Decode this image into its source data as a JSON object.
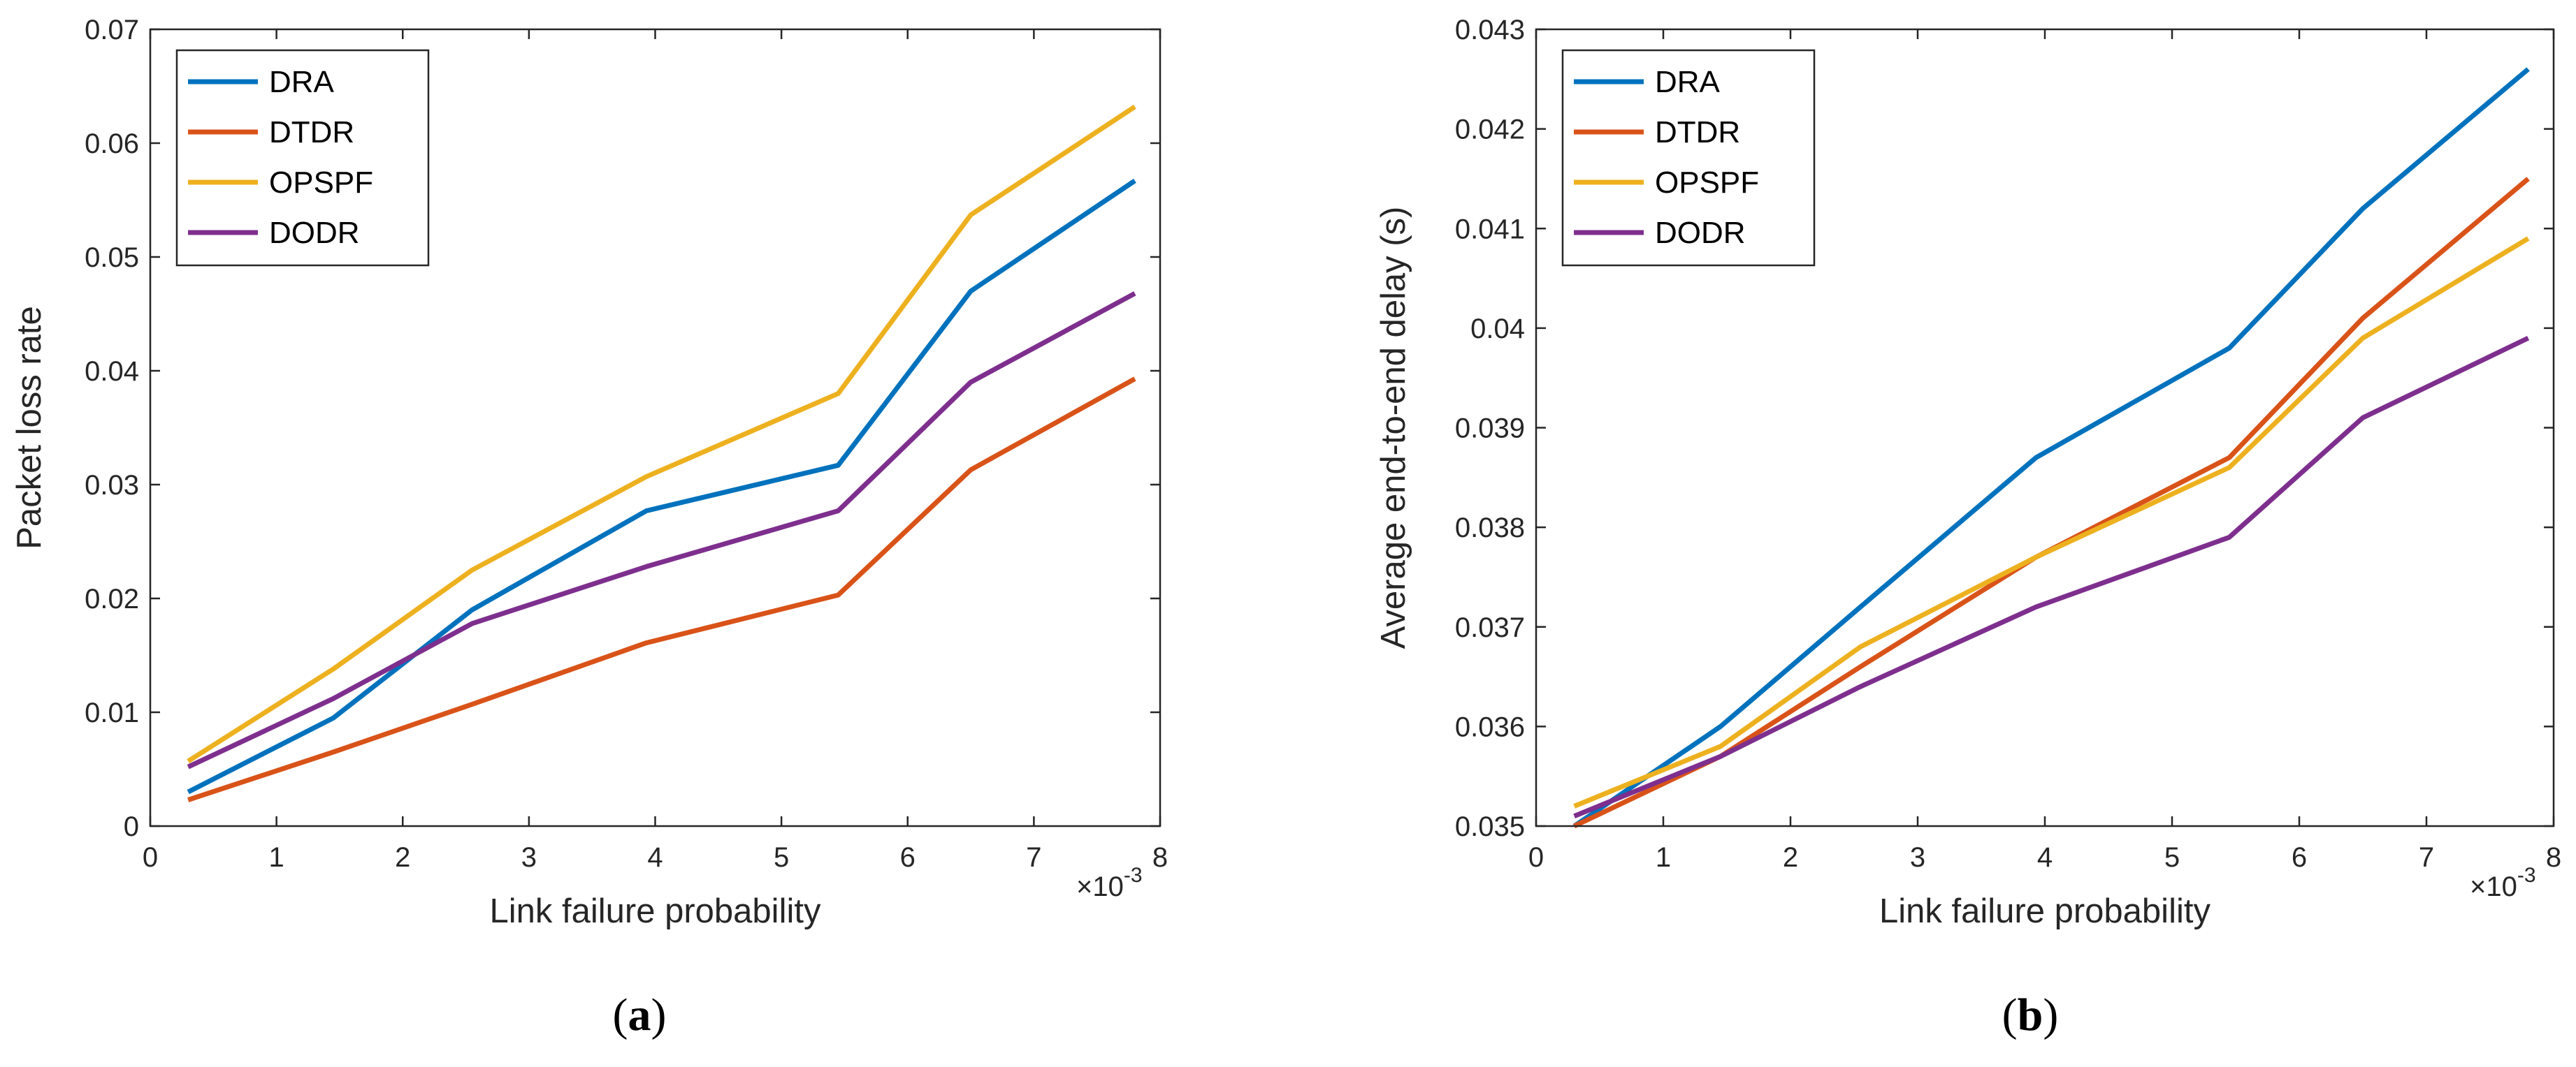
{
  "chart_data": [
    {
      "type": "line",
      "panel_label": {
        "open": "(",
        "letter": "a",
        "close": ")"
      },
      "title": "",
      "xlabel": "Link failure probability",
      "ylabel": "Packet loss rate",
      "x_exponent": {
        "base": "×10",
        "power": "-3"
      },
      "xlim": [
        0,
        8
      ],
      "ylim": [
        0,
        0.07
      ],
      "x_ticks": [
        0,
        1,
        2,
        3,
        4,
        5,
        6,
        7,
        8
      ],
      "x_tick_labels": [
        "0",
        "1",
        "2",
        "3",
        "4",
        "5",
        "6",
        "7",
        "8"
      ],
      "y_ticks": [
        0,
        0.01,
        0.02,
        0.03,
        0.04,
        0.05,
        0.06,
        0.07
      ],
      "y_tick_labels": [
        "0",
        "0.01",
        "0.02",
        "0.03",
        "0.04",
        "0.05",
        "0.06",
        "0.07"
      ],
      "grid": false,
      "legend_position": "top-left",
      "x": [
        0.3,
        1.45,
        2.55,
        3.93,
        5.45,
        6.5,
        7.8
      ],
      "series": [
        {
          "name": "DRA",
          "color": "#0072BD",
          "values": [
            0.003,
            0.0095,
            0.019,
            0.0277,
            0.0317,
            0.047,
            0.0567
          ]
        },
        {
          "name": "DTDR",
          "color": "#D95319",
          "values": [
            0.0023,
            0.0065,
            0.0107,
            0.0161,
            0.0203,
            0.0313,
            0.0393
          ]
        },
        {
          "name": "OPSPF",
          "color": "#EDB120",
          "values": [
            0.0057,
            0.0138,
            0.0225,
            0.0307,
            0.038,
            0.0537,
            0.0632
          ]
        },
        {
          "name": "DODR",
          "color": "#7E2F8E",
          "values": [
            0.0052,
            0.0112,
            0.0178,
            0.0228,
            0.0277,
            0.039,
            0.0468
          ]
        }
      ]
    },
    {
      "type": "line",
      "panel_label": {
        "open": "(",
        "letter": "b",
        "close": ")"
      },
      "title": "",
      "xlabel": "Link failure probability",
      "ylabel": "Average end-to-end delay (s)",
      "x_exponent": {
        "base": "×10",
        "power": "-3"
      },
      "xlim": [
        0,
        8
      ],
      "ylim": [
        0.035,
        0.043
      ],
      "x_ticks": [
        0,
        1,
        2,
        3,
        4,
        5,
        6,
        7,
        8
      ],
      "x_tick_labels": [
        "0",
        "1",
        "2",
        "3",
        "4",
        "5",
        "6",
        "7",
        "8"
      ],
      "y_ticks": [
        0.035,
        0.036,
        0.037,
        0.038,
        0.039,
        0.04,
        0.041,
        0.042,
        0.043
      ],
      "y_tick_labels": [
        "0.035",
        "0.036",
        "0.037",
        "0.038",
        "0.039",
        "0.04",
        "0.041",
        "0.042",
        "0.043"
      ],
      "grid": false,
      "legend_position": "top-left",
      "x": [
        0.3,
        1.45,
        2.55,
        3.93,
        5.45,
        6.5,
        7.8
      ],
      "series": [
        {
          "name": "DRA",
          "color": "#0072BD",
          "values": [
            0.035,
            0.036,
            0.0372,
            0.0387,
            0.0398,
            0.0412,
            0.0426
          ]
        },
        {
          "name": "DTDR",
          "color": "#D95319",
          "values": [
            0.035,
            0.0357,
            0.0366,
            0.0377,
            0.0387,
            0.0401,
            0.0415
          ]
        },
        {
          "name": "OPSPF",
          "color": "#EDB120",
          "values": [
            0.0352,
            0.0358,
            0.0368,
            0.0377,
            0.0386,
            0.0399,
            0.0409
          ]
        },
        {
          "name": "DODR",
          "color": "#7E2F8E",
          "values": [
            0.0351,
            0.0357,
            0.0364,
            0.0372,
            0.0379,
            0.0391,
            0.0399
          ]
        }
      ]
    }
  ]
}
